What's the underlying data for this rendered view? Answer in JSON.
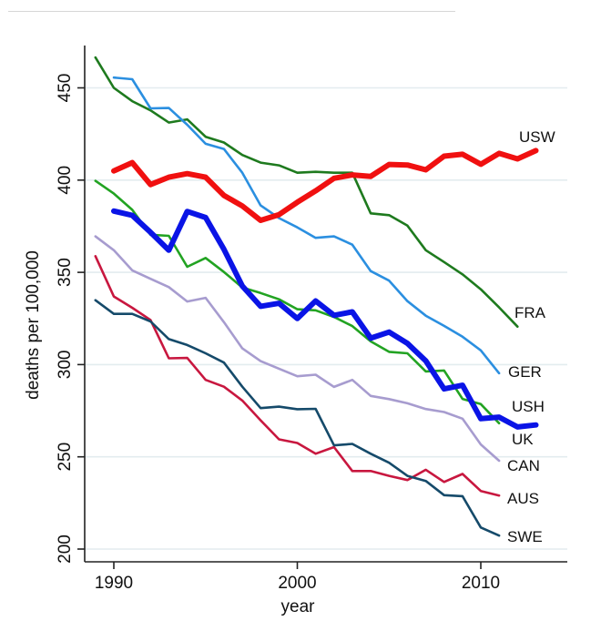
{
  "chart_data": {
    "type": "line",
    "title": "",
    "xlabel": "year",
    "ylabel": "deaths per 100,000",
    "xlim": [
      1988.6,
      2014.8
    ],
    "ylim": [
      193,
      475
    ],
    "x_ticks": [
      1990,
      2000,
      2010
    ],
    "x_tick_labels": [
      "1990",
      "2000",
      "2010"
    ],
    "y_ticks": [
      200,
      250,
      300,
      350,
      400,
      450
    ],
    "y_tick_labels": [
      "200",
      "250",
      "300",
      "350",
      "400",
      "450"
    ],
    "grid": true,
    "legend": "direct-labels-right",
    "series": [
      {
        "name": "FRA",
        "label": "FRA",
        "color": "#1e7a1e",
        "weight": "normal",
        "x": [
          1989,
          1990,
          1991,
          1992,
          1993,
          1994,
          1995,
          1996,
          1997,
          1998,
          1999,
          2000,
          2001,
          2002,
          2003,
          2004,
          2005,
          2006,
          2007,
          2008,
          2009,
          2010,
          2011,
          2012
        ],
        "values": [
          466.5,
          450.0,
          442.8,
          437.8,
          431.2,
          432.9,
          423.5,
          420.4,
          413.6,
          409.5,
          408.0,
          404.0,
          404.5,
          404.0,
          404.0,
          382.0,
          381.0,
          375.3,
          362.0,
          355.6,
          348.9,
          340.8,
          331.0,
          320.6
        ]
      },
      {
        "name": "GER",
        "label": "GER",
        "color": "#2b8fe0",
        "weight": "normal",
        "x": [
          1990,
          1991,
          1992,
          1993,
          1994,
          1995,
          1996,
          1997,
          1998,
          1999,
          2000,
          2001,
          2002,
          2003,
          2004,
          2005,
          2006,
          2007,
          2008,
          2009,
          2010,
          2011
        ],
        "values": [
          455.6,
          454.7,
          438.9,
          439.1,
          430.0,
          419.7,
          416.9,
          404.0,
          386.3,
          379.4,
          374.4,
          368.7,
          369.5,
          365.0,
          350.7,
          345.5,
          334.4,
          326.5,
          321.0,
          315.1,
          307.7,
          295.3
        ]
      },
      {
        "name": "USW",
        "label": "USW",
        "color": "#f01010",
        "weight": "bold",
        "x": [
          1990,
          1991,
          1992,
          1993,
          1994,
          1995,
          1996,
          1997,
          1998,
          1999,
          2000,
          2001,
          2002,
          2003,
          2004,
          2005,
          2006,
          2007,
          2008,
          2009,
          2010,
          2011,
          2012,
          2013
        ],
        "values": [
          405.0,
          409.5,
          397.6,
          401.6,
          403.5,
          401.6,
          391.7,
          386.0,
          378.2,
          381.3,
          388.0,
          394.2,
          401.0,
          402.8,
          402.0,
          408.5,
          408.2,
          405.6,
          413.0,
          414.0,
          408.6,
          414.5,
          411.5,
          416.0
        ]
      },
      {
        "name": "USH",
        "label": "USH",
        "color": "#22a322",
        "weight": "normal",
        "x": [
          1989,
          1990,
          1991,
          1992,
          1993,
          1994,
          1995,
          1996,
          1997,
          1998,
          1999,
          2000,
          2001,
          2002,
          2003,
          2004,
          2005,
          2006,
          2007,
          2008,
          2009,
          2010,
          2011
        ],
        "values": [
          399.6,
          392.7,
          383.9,
          370.4,
          369.8,
          353.0,
          357.8,
          350.2,
          341.8,
          338.8,
          335.4,
          330.0,
          329.4,
          325.8,
          320.9,
          312.6,
          306.9,
          306.1,
          296.3,
          296.8,
          281.4,
          278.6,
          268.2
        ]
      },
      {
        "name": "UK",
        "label": "UK",
        "color": "#0a14e6",
        "weight": "bold",
        "x": [
          1990,
          1991,
          1992,
          1993,
          1994,
          1995,
          1996,
          1997,
          1998,
          1999,
          2000,
          2001,
          2002,
          2003,
          2004,
          2005,
          2006,
          2007,
          2008,
          2009,
          2010,
          2011,
          2012,
          2013
        ],
        "values": [
          383.2,
          380.9,
          371.7,
          362.0,
          383.0,
          379.7,
          362.5,
          342.6,
          331.6,
          333.2,
          325.0,
          334.5,
          326.7,
          328.6,
          314.3,
          317.6,
          311.5,
          302.0,
          286.8,
          288.8,
          270.7,
          271.5,
          266.2,
          267.3
        ]
      },
      {
        "name": "CAN",
        "label": "CAN",
        "color": "#a79ccf",
        "weight": "normal",
        "x": [
          1989,
          1990,
          1991,
          1992,
          1993,
          1994,
          1995,
          1996,
          1997,
          1998,
          1999,
          2000,
          2001,
          2002,
          2003,
          2004,
          2005,
          2006,
          2007,
          2008,
          2009,
          2010,
          2011
        ],
        "values": [
          369.5,
          362.0,
          351.1,
          346.5,
          342.0,
          334.2,
          336.2,
          323.0,
          308.8,
          301.9,
          297.8,
          293.7,
          294.5,
          287.9,
          291.7,
          283.0,
          281.3,
          279.0,
          275.9,
          274.3,
          270.7,
          256.7,
          247.9
        ]
      },
      {
        "name": "AUS",
        "label": "AUS",
        "color": "#c8173f",
        "weight": "normal",
        "x": [
          1989,
          1990,
          1991,
          1992,
          1993,
          1994,
          1995,
          1996,
          1997,
          1998,
          1999,
          2000,
          2001,
          2002,
          2003,
          2004,
          2005,
          2006,
          2007,
          2008,
          2009,
          2010,
          2011
        ],
        "values": [
          358.8,
          336.9,
          330.8,
          324.2,
          303.4,
          303.6,
          291.7,
          288.0,
          280.5,
          269.8,
          259.5,
          257.5,
          251.7,
          255.3,
          242.3,
          242.3,
          239.7,
          237.4,
          243.0,
          236.4,
          240.7,
          231.5,
          229.0
        ]
      },
      {
        "name": "SWE",
        "label": "SWE",
        "color": "#154a6a",
        "weight": "normal",
        "x": [
          1989,
          1990,
          1991,
          1992,
          1993,
          1994,
          1995,
          1996,
          1997,
          1998,
          1999,
          2000,
          2001,
          2002,
          2003,
          2004,
          2005,
          2006,
          2007,
          2008,
          2009,
          2010,
          2011
        ],
        "values": [
          334.9,
          327.5,
          327.5,
          323.4,
          313.8,
          310.6,
          306.1,
          301.1,
          288.0,
          276.4,
          277.2,
          275.8,
          276.0,
          256.2,
          257.0,
          251.7,
          246.8,
          239.7,
          236.9,
          229.2,
          228.7,
          211.7,
          207.3
        ]
      }
    ]
  }
}
